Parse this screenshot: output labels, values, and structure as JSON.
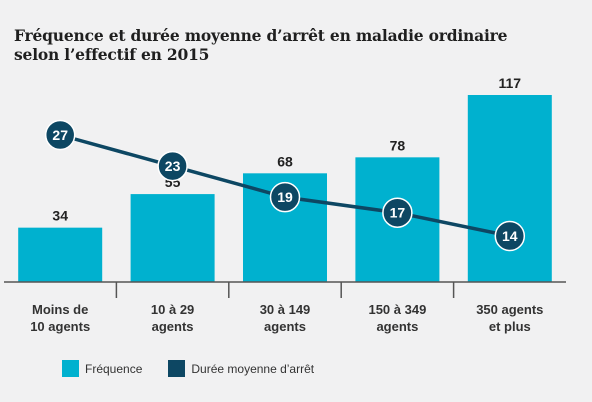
{
  "title": {
    "line1": "Fréquence et durée moyenne d’arrêt en maladie ordinaire",
    "line2": "selon l’effectif en 2015"
  },
  "colors": {
    "bar": "#00b1cf",
    "line": "#0d4763",
    "axis": "#555555",
    "text": "#222222"
  },
  "legend": {
    "position": "bottom-left",
    "items": [
      {
        "label": "Fréquence",
        "color": "#00b1cf"
      },
      {
        "label": "Durée moyenne d’arrêt",
        "color": "#0d4763"
      }
    ]
  },
  "chart_data": {
    "type": "bar",
    "categories": [
      [
        "Moins de",
        "10 agents"
      ],
      [
        "10 à 29",
        "agents"
      ],
      [
        "30 à 149",
        "agents"
      ],
      [
        "150 à 349",
        "agents"
      ],
      [
        "350 agents",
        "et plus"
      ]
    ],
    "series": [
      {
        "name": "Fréquence",
        "type": "bar",
        "values": [
          34,
          55,
          68,
          78,
          117
        ]
      },
      {
        "name": "Durée moyenne d’arrêt",
        "type": "line",
        "values": [
          27,
          23,
          19,
          17,
          14
        ]
      }
    ],
    "title": "Fréquence et durée moyenne d’arrêt en maladie ordinaire selon l’effectif en 2015",
    "xlabel": "",
    "ylabel": "",
    "grid": false,
    "data_labels": true
  }
}
